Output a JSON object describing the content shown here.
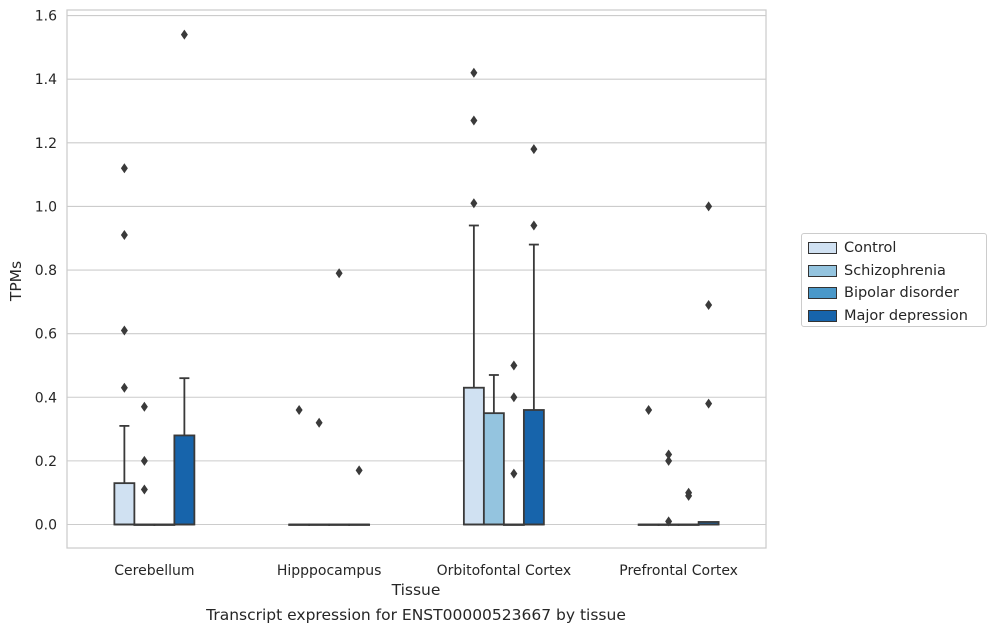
{
  "caption": "Transcript expression for ENST00000523667 by tissue",
  "chart_data": {
    "type": "box",
    "xlabel": "Tissue",
    "ylabel": "TPMs",
    "ylim": [
      -0.075,
      1.62
    ],
    "yticks": [
      "0.0",
      "0.2",
      "0.4",
      "0.6",
      "0.8",
      "1.0",
      "1.2",
      "1.4",
      "1.6"
    ],
    "grid": "horizontal",
    "legend_position": "right, outside",
    "categories": [
      "Cerebellum",
      "Hipppocampus",
      "Orbitofontal Cortex",
      "Prefrontal Cortex"
    ],
    "series": [
      {
        "name": "Control",
        "color": "#d0e1f2",
        "boxes": [
          {
            "q1": 0.0,
            "median": 0.0,
            "q3": 0.13,
            "whisker_low": 0.0,
            "whisker_high": 0.31,
            "outliers": [
              0.43,
              0.61,
              0.91,
              1.12
            ]
          },
          {
            "q1": 0.0,
            "median": 0.0,
            "q3": 0.0,
            "whisker_low": 0.0,
            "whisker_high": 0.0,
            "outliers": [
              0.36
            ]
          },
          {
            "q1": 0.0,
            "median": 0.0,
            "q3": 0.43,
            "whisker_low": 0.0,
            "whisker_high": 0.94,
            "outliers": [
              1.01,
              1.27,
              1.42
            ]
          },
          {
            "q1": 0.0,
            "median": 0.0,
            "q3": 0.0,
            "whisker_low": 0.0,
            "whisker_high": 0.0,
            "outliers": [
              0.36
            ]
          }
        ]
      },
      {
        "name": "Schizophrenia",
        "color": "#94c4df",
        "boxes": [
          {
            "q1": 0.0,
            "median": 0.0,
            "q3": 0.0,
            "whisker_low": 0.0,
            "whisker_high": 0.0,
            "outliers": [
              0.11,
              0.2,
              0.37
            ]
          },
          {
            "q1": 0.0,
            "median": 0.0,
            "q3": 0.0,
            "whisker_low": 0.0,
            "whisker_high": 0.0,
            "outliers": [
              0.32
            ]
          },
          {
            "q1": 0.0,
            "median": 0.0,
            "q3": 0.35,
            "whisker_low": 0.0,
            "whisker_high": 0.47,
            "outliers": []
          },
          {
            "q1": 0.0,
            "median": 0.0,
            "q3": 0.0,
            "whisker_low": 0.0,
            "whisker_high": 0.0,
            "outliers": [
              0.01,
              0.2,
              0.22
            ]
          }
        ]
      },
      {
        "name": "Bipolar disorder",
        "color": "#4a98c9",
        "boxes": [
          {
            "q1": 0.0,
            "median": 0.0,
            "q3": 0.0,
            "whisker_low": 0.0,
            "whisker_high": 0.0,
            "outliers": []
          },
          {
            "q1": 0.0,
            "median": 0.0,
            "q3": 0.0,
            "whisker_low": 0.0,
            "whisker_high": 0.0,
            "outliers": [
              0.79
            ]
          },
          {
            "q1": 0.0,
            "median": 0.0,
            "q3": 0.0,
            "whisker_low": 0.0,
            "whisker_high": 0.0,
            "outliers": [
              0.16,
              0.4,
              0.5
            ]
          },
          {
            "q1": 0.0,
            "median": 0.0,
            "q3": 0.0,
            "whisker_low": 0.0,
            "whisker_high": 0.0,
            "outliers": [
              0.09,
              0.1
            ]
          }
        ]
      },
      {
        "name": "Major depression",
        "color": "#1764ab",
        "boxes": [
          {
            "q1": 0.0,
            "median": 0.0,
            "q3": 0.28,
            "whisker_low": 0.0,
            "whisker_high": 0.46,
            "outliers": [
              1.54
            ]
          },
          {
            "q1": 0.0,
            "median": 0.0,
            "q3": 0.0,
            "whisker_low": 0.0,
            "whisker_high": 0.0,
            "outliers": [
              0.17
            ]
          },
          {
            "q1": 0.0,
            "median": 0.0,
            "q3": 0.36,
            "whisker_low": 0.0,
            "whisker_high": 0.88,
            "outliers": [
              0.94,
              1.18
            ]
          },
          {
            "q1": 0.0,
            "median": 0.0,
            "q3": 0.008,
            "whisker_low": 0.0,
            "whisker_high": 0.008,
            "outliers": [
              0.38,
              0.69,
              1.0
            ]
          }
        ]
      }
    ]
  }
}
